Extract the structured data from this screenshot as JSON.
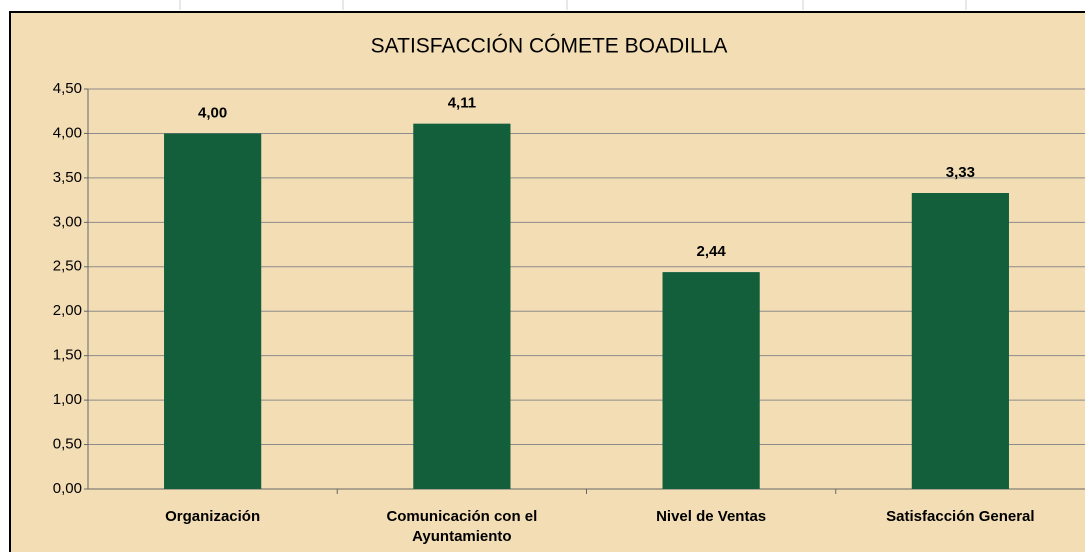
{
  "chart_data": {
    "type": "bar",
    "title": "SATISFACCIÓN CÓMETE BOADILLA",
    "categories": [
      "Organización",
      "Comunicación con el Ayuntamiento",
      "Nivel de Ventas",
      "Satisfacción General"
    ],
    "values": [
      4.0,
      4.11,
      2.44,
      3.33
    ],
    "value_labels": [
      "4,00",
      "4,11",
      "2,44",
      "3,33"
    ],
    "color": "#135f3c",
    "ylim": [
      0,
      4.5
    ],
    "yticks": [
      {
        "value": 0,
        "label": "0,00"
      },
      {
        "value": 0.5,
        "label": "0,50"
      },
      {
        "value": 1,
        "label": "1,00"
      },
      {
        "value": 1.5,
        "label": "1,50"
      },
      {
        "value": 2,
        "label": "2,00"
      },
      {
        "value": 2.5,
        "label": "2,50"
      },
      {
        "value": 3,
        "label": "3,00"
      },
      {
        "value": 3.5,
        "label": "3,50"
      },
      {
        "value": 4,
        "label": "4,00"
      },
      {
        "value": 4.5,
        "label": "4,50"
      }
    ],
    "grid": true
  }
}
